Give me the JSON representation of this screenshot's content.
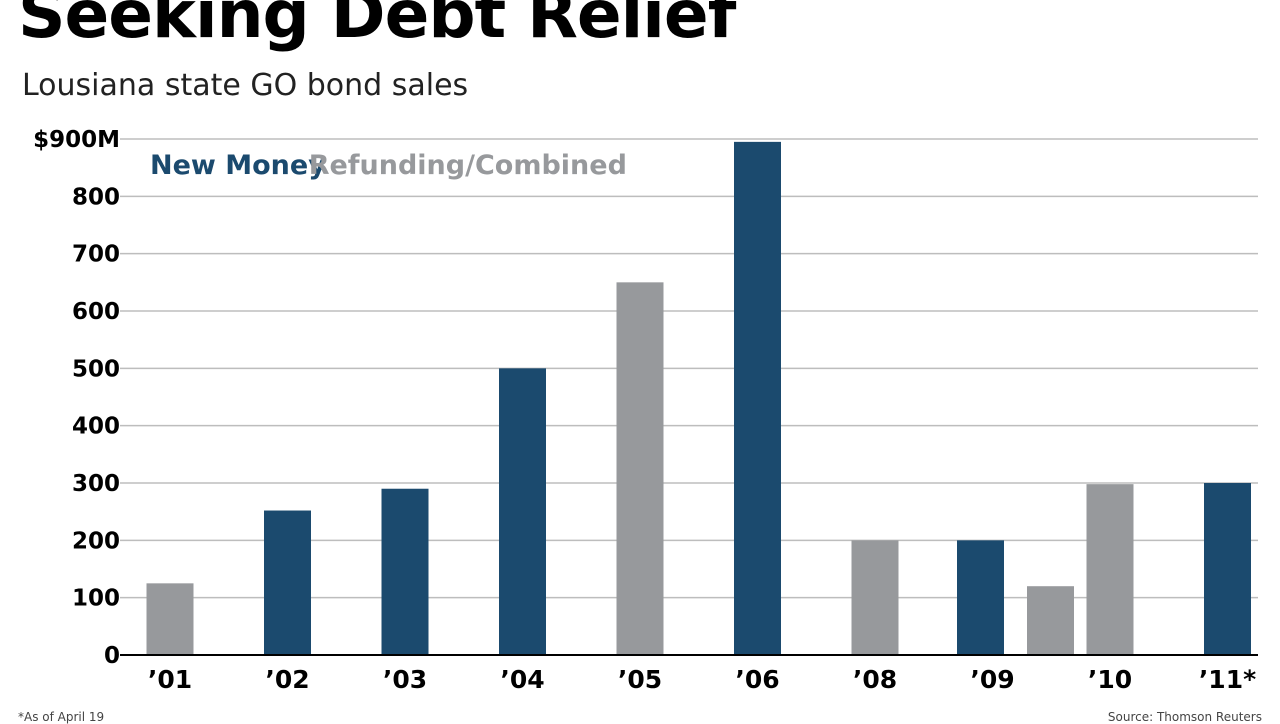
{
  "title": "Seeking Debt Relief",
  "subtitle": "Lousiana state GO bond sales",
  "footnote": "*As of April 19",
  "source": "Source: Thomson Reuters",
  "colors": {
    "new_money": "#1b4a6e",
    "refunding": "#97999c",
    "grid": "#bdbdbd",
    "axis": "#000000"
  },
  "chart_data": {
    "type": "bar",
    "title": "Seeking Debt Relief",
    "subtitle": "Lousiana state GO bond sales",
    "xlabel": "",
    "ylabel": "",
    "ylim": [
      0,
      900
    ],
    "yticks": [
      0,
      100,
      200,
      300,
      400,
      500,
      600,
      700,
      800,
      900
    ],
    "ytick_labels": [
      "0",
      "100",
      "200",
      "300",
      "400",
      "500",
      "600",
      "700",
      "800",
      "$900M"
    ],
    "grid": true,
    "legend": {
      "placement": "top-left"
    },
    "categories": [
      "’01",
      "’02",
      "’03",
      "’04",
      "’05",
      "’06",
      "’08",
      "’09",
      "’10",
      "’11*"
    ],
    "series": [
      {
        "name": "New Money",
        "color": "#1b4a6e",
        "values": [
          null,
          252,
          290,
          500,
          null,
          895,
          null,
          200,
          null,
          300
        ]
      },
      {
        "name": "Refunding/Combined",
        "color": "#97999c",
        "values": [
          125,
          null,
          null,
          null,
          650,
          null,
          200,
          120,
          298,
          null
        ]
      }
    ]
  }
}
